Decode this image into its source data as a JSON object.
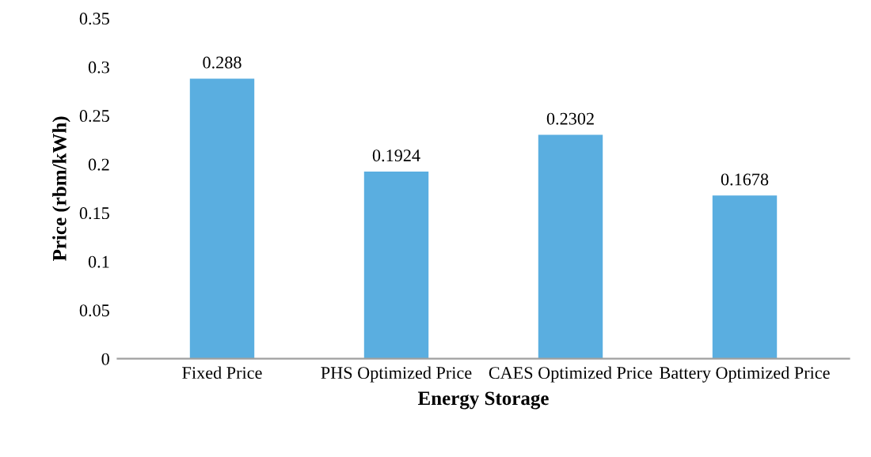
{
  "chart_data": {
    "type": "bar",
    "xlabel": "Energy Storage",
    "ylabel": "Price (rbm/kWh)",
    "categories": [
      "Fixed Price",
      "PHS Optimized Price",
      "CAES Optimized Price",
      "Battery Optimized Price"
    ],
    "values": [
      0.288,
      0.1924,
      0.2302,
      0.1678
    ],
    "color": "#5aaee0",
    "ylim": [
      0,
      0.35
    ],
    "yticks": [
      0,
      0.05,
      0.1,
      0.15,
      0.2,
      0.25,
      0.3,
      0.35
    ],
    "data_labels": true,
    "grid": false,
    "legend": false
  }
}
